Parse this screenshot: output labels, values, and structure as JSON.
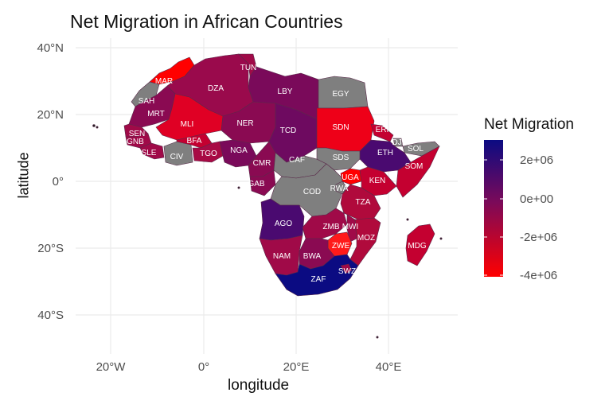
{
  "title": "Net Migration in African Countries",
  "axes": {
    "xlabel": "longitude",
    "ylabel": "latitude",
    "x_ticks": [
      "20°W",
      "0°",
      "20°E",
      "40°E"
    ],
    "y_ticks": [
      "40°N",
      "20°N",
      "0°",
      "20°S",
      "40°S"
    ]
  },
  "legend": {
    "title": "Net Migration",
    "labels": [
      "2e+06",
      "0e+00",
      "-2e+06",
      "-4e+06"
    ],
    "colors": {
      "high": "#0b0b82",
      "mid": "#7a0a5a",
      "low": "#ff0000",
      "na": "#7f7f7f"
    }
  },
  "chart_data": {
    "type": "choropleth",
    "title": "Net Migration in African Countries",
    "xlabel": "longitude",
    "ylabel": "latitude",
    "xlim": [
      -30,
      55
    ],
    "ylim": [
      -50,
      40
    ],
    "color_scale_limits": [
      -4000000,
      3000000
    ],
    "grid": true,
    "legend_position": "right",
    "regions": [
      {
        "code": "MAR",
        "value": -4000000
      },
      {
        "code": "SAH",
        "value": null
      },
      {
        "code": "DZA",
        "value": -500000
      },
      {
        "code": "TUN",
        "value": -400000
      },
      {
        "code": "LBY",
        "value": 0
      },
      {
        "code": "EGY",
        "value": null
      },
      {
        "code": "MRT",
        "value": -300000
      },
      {
        "code": "MLI",
        "value": -2500000
      },
      {
        "code": "NER",
        "value": -500000
      },
      {
        "code": "TCD",
        "value": -200000
      },
      {
        "code": "SDN",
        "value": -3500000
      },
      {
        "code": "ERI",
        "value": -1500000
      },
      {
        "code": "DJI",
        "value": null
      },
      {
        "code": "SOL",
        "value": null
      },
      {
        "code": "ETH",
        "value": 800000
      },
      {
        "code": "SOM",
        "value": -1500000
      },
      {
        "code": "SEN",
        "value": -1000000
      },
      {
        "code": "GNB",
        "value": -1000000
      },
      {
        "code": "SLE",
        "value": -1000000
      },
      {
        "code": "CIV",
        "value": null
      },
      {
        "code": "BFA",
        "value": -1500000
      },
      {
        "code": "TGO",
        "value": -1200000
      },
      {
        "code": "NGA",
        "value": -300000
      },
      {
        "code": "CMR",
        "value": -500000
      },
      {
        "code": "CAF",
        "value": null
      },
      {
        "code": "SDS",
        "value": null
      },
      {
        "code": "GAB",
        "value": -200000
      },
      {
        "code": "COD",
        "value": null
      },
      {
        "code": "UGA",
        "value": -3000000
      },
      {
        "code": "KEN",
        "value": -1500000
      },
      {
        "code": "RWA",
        "value": null
      },
      {
        "code": "TZA",
        "value": -1500000
      },
      {
        "code": "AGO",
        "value": 800000
      },
      {
        "code": "ZMB",
        "value": -1000000
      },
      {
        "code": "MWI",
        "value": -1000000
      },
      {
        "code": "MOZ",
        "value": -1200000
      },
      {
        "code": "MDG",
        "value": -1000000
      },
      {
        "code": "ZWE",
        "value": -3000000
      },
      {
        "code": "NAM",
        "value": -1000000
      },
      {
        "code": "BWA",
        "value": -500000
      },
      {
        "code": "ZAF",
        "value": 3000000
      },
      {
        "code": "SWZ",
        "value": -500000
      }
    ]
  },
  "regions": {
    "MAR": "MAR",
    "SAH": "SAH",
    "DZA": "DZA",
    "TUN": "TUN",
    "LBY": "LBY",
    "EGY": "EGY",
    "MRT": "MRT",
    "MLI": "MLI",
    "NER": "NER",
    "TCD": "TCD",
    "SDN": "SDN",
    "ERI": "ERI",
    "DJI": "DJI",
    "SOL": "SOL",
    "ETH": "ETH",
    "SOM": "SOM",
    "SEN": "SEN",
    "GNB": "GNB",
    "SLE": "SLE",
    "CIV": "CIV",
    "BFA": "BFA",
    "TGO": "TGO",
    "NGA": "NGA",
    "CMR": "CMR",
    "CAF": "CAF",
    "SDS": "SDS",
    "GAB": "GAB",
    "COD": "COD",
    "UGA": "UGA",
    "KEN": "KEN",
    "RWA": "RWA",
    "TZA": "TZA",
    "AGO": "AGO",
    "ZMB": "ZMB",
    "MWI": "MWI",
    "MOZ": "MOZ",
    "MDG": "MDG",
    "ZWE": "ZWE",
    "NAM": "NAM",
    "BWA": "BWA",
    "ZAF": "ZAF",
    "SWZ": "SWZ"
  }
}
